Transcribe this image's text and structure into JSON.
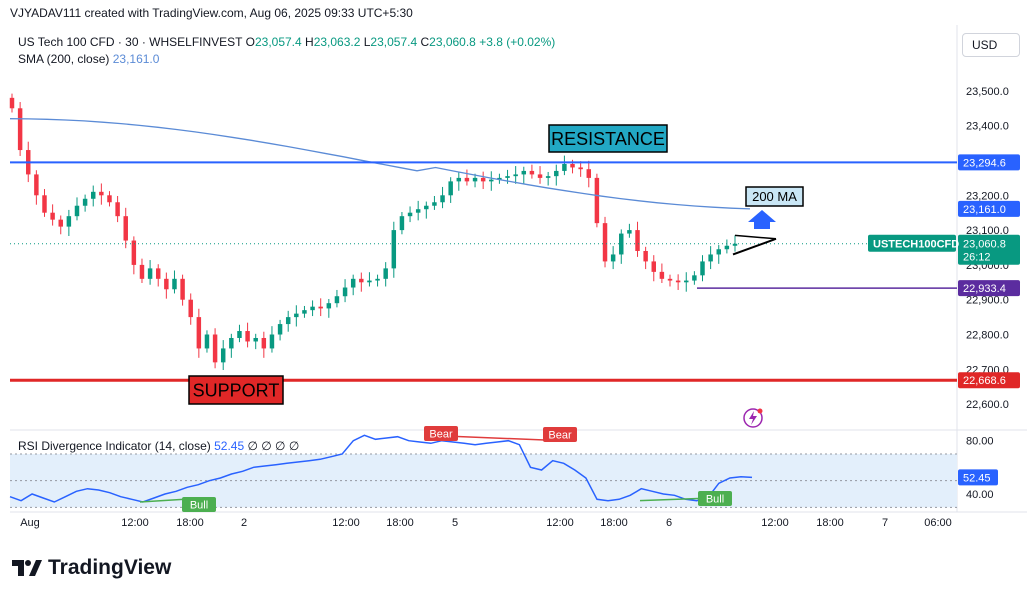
{
  "header": {
    "created_line": "VJYADAV111 created with TradingView.com, Aug 06, 2025 09:33 UTC+5:30"
  },
  "legend": {
    "symbol": "US Tech 100 CFD · 30 · WHSELFINVEST",
    "o_label": "O",
    "o_value": "23,057.4",
    "h_label": "H",
    "h_value": "23,063.2",
    "l_label": "L",
    "l_value": "23,057.4",
    "c_label": "C",
    "c_value": "23,060.8",
    "change": "+3.8 (+0.02%)",
    "sma_label": "SMA (200, close)",
    "sma_value": "23,161.0"
  },
  "rsi_legend": {
    "label": "RSI Divergence Indicator (14, close)",
    "value": "52.45",
    "placeholders": "∅ ∅ ∅ ∅"
  },
  "currency": "USD",
  "branding": "TradingView",
  "colors": {
    "up": "#089981",
    "down": "#f23645",
    "resistance": "#2962ff",
    "support": "#e02727",
    "sma": "#5b8bd6",
    "low_line": "#5b2c9f",
    "rsi": "#2962ff",
    "rsi_band": "#e3effb",
    "label_box": "#22a8c4",
    "bull": "#4caf50",
    "bear": "#e03c3c",
    "price_tag": "#089981"
  },
  "chart_data": {
    "type": "candlestick",
    "price_axis": {
      "ylim": [
        22540,
        23560
      ],
      "ticks": [
        "23,500.0",
        "23,400.0",
        "23,300.0",
        "23,200.0",
        "23,100.0",
        "23,000.0",
        "22,900.0",
        "22,800.0",
        "22,700.0",
        "22,600.0"
      ],
      "tick_values": [
        23500,
        23400,
        23300,
        23200,
        23100,
        23000,
        22900,
        22800,
        22700,
        22600
      ]
    },
    "time_axis": {
      "ticks": [
        "Aug",
        "12:00",
        "18:00",
        "2",
        "12:00",
        "18:00",
        "5",
        "12:00",
        "18:00",
        "6",
        "12:00",
        "18:00",
        "7",
        "06:00"
      ]
    },
    "close": [
      23450,
      23330,
      23260,
      23200,
      23150,
      23130,
      23110,
      23140,
      23170,
      23190,
      23210,
      23200,
      23180,
      23140,
      23070,
      23000,
      22960,
      22990,
      22960,
      22930,
      22960,
      22900,
      22850,
      22760,
      22800,
      22720,
      22760,
      22790,
      22810,
      22780,
      22790,
      22760,
      22800,
      22830,
      22850,
      22860,
      22870,
      22880,
      22875,
      22890,
      22910,
      22935,
      22960,
      22950,
      22955,
      22960,
      22990,
      23100,
      23140,
      23150,
      23160,
      23170,
      23180,
      23200,
      23240,
      23250,
      23240,
      23250,
      23240,
      23245,
      23250,
      23255,
      23260,
      23270,
      23260,
      23250,
      23255,
      23270,
      23290,
      23280,
      23275,
      23250,
      23120,
      23010,
      23030,
      23090,
      23100,
      23040,
      23010,
      22980,
      22960,
      22955,
      22950,
      22955,
      22970,
      23010,
      23030,
      23045,
      23055,
      23060.8
    ],
    "resistance": {
      "value": 23294.6,
      "price_label": "23,294.6",
      "annotation": "RESISTANCE"
    },
    "support": {
      "value": 22668.6,
      "price_label": "22,668.6",
      "annotation": "SUPPORT"
    },
    "low_line": {
      "value": 22933.4,
      "price_label": "22,933.4"
    },
    "sma": {
      "start_value": 23420,
      "end_value": 23161.0,
      "price_label": "23,161.0",
      "annotation": "200 MA"
    },
    "last_price": {
      "value": 23060.8,
      "price_label": "23,060.8",
      "countdown": "26:12",
      "symbol_tag": "USTECH100CFD"
    },
    "rsi": {
      "ylim": [
        28,
        88
      ],
      "ticks": [
        "80.00",
        "40.00"
      ],
      "tick_values": [
        80,
        40
      ],
      "overbought": 70,
      "oversold": 30,
      "value_label": "52.45",
      "values": [
        38,
        35,
        40,
        37,
        34,
        38,
        42,
        44,
        43,
        41,
        38,
        36,
        34,
        37,
        40,
        42,
        45,
        47,
        50,
        52,
        55,
        57,
        60,
        61,
        62,
        63,
        64,
        65,
        66,
        68,
        70,
        80,
        84,
        81,
        82,
        83,
        80,
        79,
        78,
        80,
        79,
        78,
        77,
        78,
        79,
        80,
        77,
        60,
        58,
        65,
        63,
        58,
        52,
        36,
        35,
        36,
        39,
        44,
        42,
        40,
        39,
        36,
        35,
        37,
        48,
        52,
        53,
        52.45
      ],
      "annotations": [
        {
          "text": "Bull",
          "kind": "bull",
          "position": "bottom"
        },
        {
          "text": "Bear",
          "kind": "bear",
          "position": "top"
        },
        {
          "text": "Bear",
          "kind": "bear",
          "position": "top"
        },
        {
          "text": "Bull",
          "kind": "bull",
          "position": "bottom"
        }
      ]
    }
  }
}
